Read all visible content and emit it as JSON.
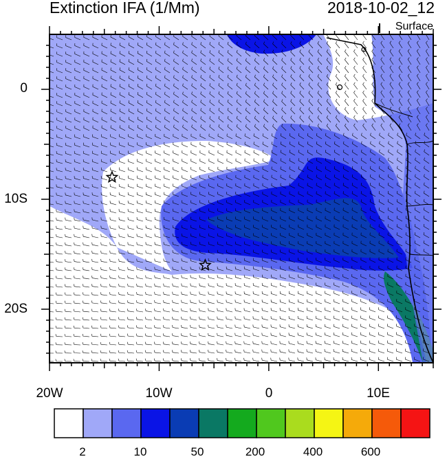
{
  "title": "Extinction IFA (1/Mm)",
  "datetime": "2018-10-02_12",
  "level": "Surface",
  "axes": {
    "lat_labels": [
      "0",
      "10S",
      "20S"
    ],
    "lon_labels": [
      "20W",
      "10W",
      "0",
      "10E"
    ]
  },
  "markers": [
    {
      "name": "star",
      "lon": -14.3,
      "lat": -8.0
    },
    {
      "name": "star",
      "lon": -5.8,
      "lat": -16.0
    }
  ],
  "colorbar": {
    "labels": [
      "2",
      "10",
      "50",
      "200",
      "400",
      "600"
    ],
    "colors": [
      "#ffffff",
      "#a0a8f8",
      "#5a68f0",
      "#0a14e6",
      "#0a3cb4",
      "#0a7864",
      "#14aa1e",
      "#50c81e",
      "#aadc1e",
      "#f5f514",
      "#f5aa0a",
      "#f55a0a",
      "#f51414"
    ]
  }
}
